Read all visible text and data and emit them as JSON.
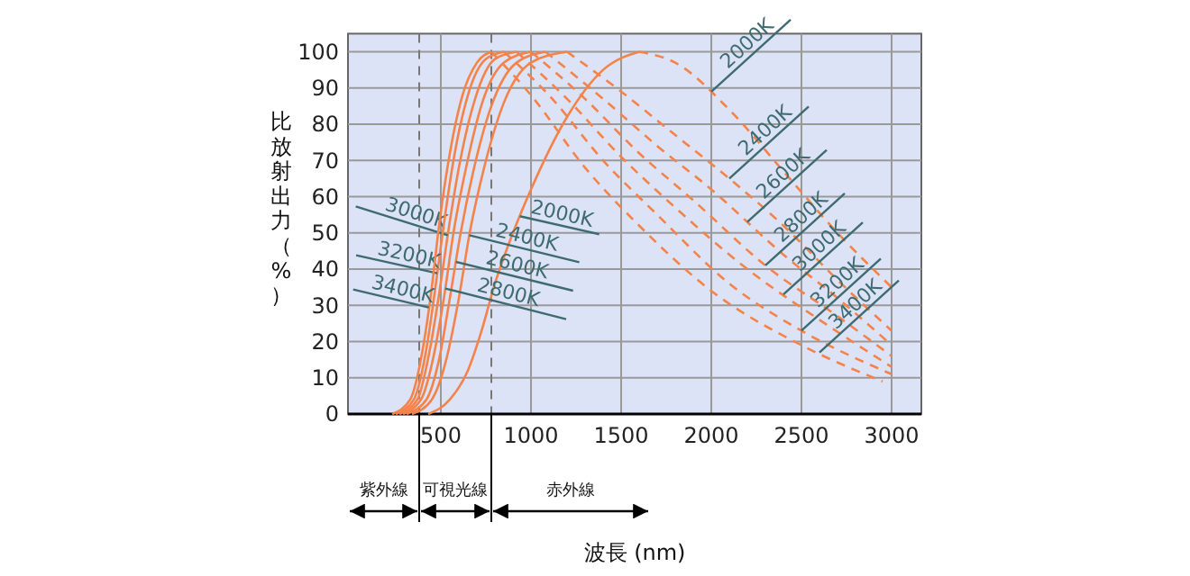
{
  "chart_data": {
    "type": "line",
    "xlabel": "波長 (nm)",
    "ylabel": "比放射出力（%）",
    "xlim": [
      -15,
      3165
    ],
    "ylim": [
      0,
      105
    ],
    "xticks": [
      500,
      1000,
      1500,
      2000,
      2500,
      3000
    ],
    "yticks": [
      0,
      10,
      20,
      30,
      40,
      50,
      60,
      70,
      80,
      90,
      100
    ],
    "grid": true,
    "ref_lines": [
      {
        "axis": "x",
        "value": 380,
        "line_style": "dashed"
      },
      {
        "axis": "x",
        "value": 780,
        "line_style": "dashed"
      }
    ],
    "annotations": [
      "紫外線",
      "可視光線",
      "赤外線",
      {
        "text": "2000K",
        "x": 2000,
        "y": 89
      },
      {
        "text": "2400K",
        "x": 2100,
        "y": 65
      },
      {
        "text": "2600K",
        "x": 2200,
        "y": 53
      },
      {
        "text": "2800K",
        "x": 2300,
        "y": 41
      },
      {
        "text": "3000K",
        "x": 2400,
        "y": 33
      },
      {
        "text": "3200K",
        "x": 2500,
        "y": 23
      },
      {
        "text": "3400K",
        "x": 2600,
        "y": 17
      }
    ],
    "series": [
      {
        "name": "2000K",
        "color": "#f4834a",
        "line_style": "solid",
        "x": [
          430,
          550,
          650,
          720,
          800,
          900,
          1000,
          1200,
          1400,
          1600
        ],
        "values": [
          0,
          4,
          12,
          22,
          36,
          50,
          62,
          82,
          95,
          100
        ]
      },
      {
        "name": "2400K",
        "color": "#f4834a",
        "line_style": "solid",
        "x": [
          340,
          450,
          530,
          600,
          660,
          740,
          850,
          1000,
          1200
        ],
        "values": [
          0,
          4,
          15,
          32,
          50,
          68,
          86,
          97,
          100
        ]
      },
      {
        "name": "2600K",
        "color": "#f4834a",
        "line_style": "solid",
        "x": [
          310,
          420,
          490,
          550,
          610,
          680,
          780,
          920,
          1080
        ],
        "values": [
          0,
          4,
          15,
          32,
          50,
          67,
          85,
          97,
          100
        ]
      },
      {
        "name": "2800K",
        "color": "#f4834a",
        "line_style": "solid",
        "x": [
          290,
          390,
          460,
          520,
          570,
          640,
          730,
          850,
          1000
        ],
        "values": [
          0,
          4,
          16,
          33,
          50,
          68,
          86,
          97,
          100
        ]
      },
      {
        "name": "3000K",
        "color": "#f4834a",
        "line_style": "solid",
        "x": [
          270,
          370,
          440,
          490,
          540,
          600,
          690,
          800,
          920
        ],
        "values": [
          0,
          4,
          18,
          33,
          50,
          68,
          87,
          98,
          100
        ]
      },
      {
        "name": "3200K",
        "color": "#f4834a",
        "line_style": "solid",
        "x": [
          250,
          350,
          420,
          470,
          510,
          570,
          650,
          750,
          850
        ],
        "values": [
          0,
          4,
          18,
          35,
          50,
          70,
          88,
          98,
          100
        ]
      },
      {
        "name": "3400K",
        "color": "#f4834a",
        "line_style": "solid",
        "x": [
          230,
          330,
          400,
          450,
          490,
          550,
          620,
          700,
          780
        ],
        "values": [
          0,
          4,
          18,
          35,
          52,
          72,
          88,
          97,
          100
        ]
      },
      {
        "color": "#f4834a",
        "line_style": "dashed",
        "x": [
          1600,
          1800,
          2100,
          2400,
          2700,
          3000
        ],
        "values": [
          100,
          97,
          84,
          67,
          50,
          35
        ]
      },
      {
        "color": "#f4834a",
        "line_style": "dashed",
        "x": [
          1200,
          1500,
          1800,
          2100,
          2400,
          2700,
          3000
        ],
        "values": [
          100,
          89,
          77,
          65,
          52,
          37,
          23
        ]
      },
      {
        "color": "#f4834a",
        "line_style": "dashed",
        "x": [
          1080,
          1400,
          1700,
          2000,
          2400,
          2700,
          3000
        ],
        "values": [
          100,
          87,
          74,
          62,
          44,
          32,
          19
        ]
      },
      {
        "color": "#f4834a",
        "line_style": "dashed",
        "x": [
          1000,
          1300,
          1600,
          1900,
          2300,
          2700,
          3000
        ],
        "values": [
          100,
          87,
          72,
          59,
          41,
          27,
          16
        ]
      },
      {
        "color": "#f4834a",
        "line_style": "dashed",
        "x": [
          920,
          1200,
          1500,
          1800,
          2200,
          2600,
          3000
        ],
        "values": [
          100,
          87,
          71,
          57,
          40,
          26,
          13
        ]
      },
      {
        "color": "#f4834a",
        "line_style": "dashed",
        "x": [
          850,
          1100,
          1400,
          1700,
          2100,
          2500,
          3000
        ],
        "values": [
          100,
          88,
          70,
          55,
          36,
          23,
          11
        ]
      },
      {
        "color": "#f4834a",
        "line_style": "dashed",
        "x": [
          780,
          1000,
          1300,
          1600,
          2000,
          2500,
          2950
        ],
        "values": [
          100,
          88,
          68,
          52,
          34,
          19,
          9
        ]
      }
    ]
  }
}
